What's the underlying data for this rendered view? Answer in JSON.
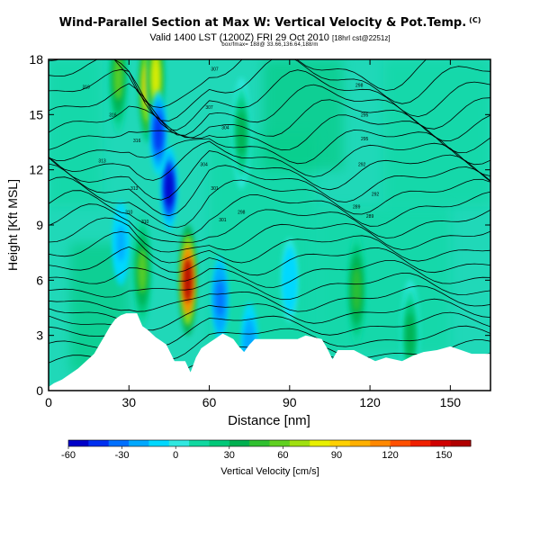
{
  "header": {
    "title": "Wind-Parallel Section at Max W: Vertical Velocity & Pot.Temp.",
    "title_mark": "(C)",
    "valid_main": "Valid 1400 LST (1200Z) FRI 29 Oct 2010",
    "valid_small": "[18hrl cst@2251z]",
    "endpoints": "box/fmax= 188@ 33.66,136.64,188/m"
  },
  "chart_data": {
    "type": "heatmap",
    "title": "Wind-Parallel Section at Max W: Vertical Velocity & Pot.Temp.",
    "xlabel": "Distance [nm]",
    "ylabel": "Height [Kft MSL]",
    "xlim": [
      0,
      165
    ],
    "ylim": [
      0,
      18
    ],
    "xticks": [
      0,
      30,
      60,
      90,
      120,
      150
    ],
    "yticks": [
      0,
      3,
      6,
      9,
      12,
      15,
      18
    ],
    "colorbar": {
      "label": "Vertical Velocity [cm/s]",
      "min": -60,
      "max": 165,
      "tick_values": [
        -60,
        -30,
        0,
        30,
        60,
        90,
        120,
        150
      ],
      "colors": [
        "#0000c8",
        "#0030f0",
        "#0070ff",
        "#00a8ff",
        "#00d8ff",
        "#30e8e0",
        "#10d8a0",
        "#00c878",
        "#00b050",
        "#30c030",
        "#60d020",
        "#a0e010",
        "#e8f000",
        "#ffd000",
        "#ffb000",
        "#ff8800",
        "#ff5000",
        "#f02000",
        "#d00000",
        "#b00000"
      ]
    },
    "terrain": [
      [
        0,
        0.2
      ],
      [
        2,
        0.4
      ],
      [
        5,
        0.6
      ],
      [
        8,
        0.9
      ],
      [
        11,
        1.2
      ],
      [
        14,
        1.6
      ],
      [
        17,
        2.0
      ],
      [
        19,
        2.5
      ],
      [
        21,
        3.0
      ],
      [
        23,
        3.5
      ],
      [
        25,
        3.9
      ],
      [
        27,
        4.1
      ],
      [
        29,
        4.2
      ],
      [
        33,
        4.2
      ],
      [
        35,
        3.5
      ],
      [
        37,
        3.3
      ],
      [
        40,
        2.9
      ],
      [
        42,
        2.7
      ],
      [
        44,
        2.5
      ],
      [
        47,
        1.6
      ],
      [
        51,
        1.6
      ],
      [
        53,
        1.0
      ],
      [
        55,
        1.8
      ],
      [
        57,
        2.3
      ],
      [
        60,
        2.6
      ],
      [
        63,
        2.9
      ],
      [
        65,
        3.1
      ],
      [
        69,
        2.8
      ],
      [
        71,
        2.4
      ],
      [
        73,
        2.1
      ],
      [
        75,
        2.5
      ],
      [
        77,
        2.8
      ],
      [
        83,
        2.8
      ],
      [
        85,
        2.8
      ],
      [
        93,
        2.8
      ],
      [
        96,
        3.0
      ],
      [
        102,
        2.8
      ],
      [
        104,
        2.3
      ],
      [
        106,
        1.7
      ],
      [
        108,
        2.2
      ],
      [
        114,
        2.2
      ],
      [
        118,
        1.9
      ],
      [
        122,
        1.6
      ],
      [
        126,
        1.8
      ],
      [
        132,
        1.6
      ],
      [
        136,
        1.9
      ],
      [
        140,
        2.1
      ],
      [
        145,
        2.2
      ],
      [
        150,
        2.4
      ],
      [
        158,
        2.0
      ],
      [
        165,
        2.0
      ]
    ],
    "updrafts": [
      {
        "x": 52,
        "z": 6.0,
        "w": 163
      },
      {
        "x": 37,
        "z": 16.5,
        "w": 95
      },
      {
        "x": 40,
        "z": 17.0,
        "w": 80
      },
      {
        "x": 35,
        "z": 6.5,
        "w": 55
      },
      {
        "x": 26,
        "z": 17.0,
        "w": 55
      },
      {
        "x": 115,
        "z": 5.5,
        "w": 45
      },
      {
        "x": 135,
        "z": 3.0,
        "w": 30
      },
      {
        "x": 72,
        "z": 14.0,
        "w": 35
      }
    ],
    "downdrafts": [
      {
        "x": 45,
        "z": 11.0,
        "w": -55
      },
      {
        "x": 41,
        "z": 14.0,
        "w": -40
      },
      {
        "x": 64,
        "z": 5.0,
        "w": -35
      },
      {
        "x": 27,
        "z": 8.0,
        "w": -20
      },
      {
        "x": 75,
        "z": 2.5,
        "w": -25
      },
      {
        "x": 90,
        "z": 6.0,
        "w": -15
      }
    ],
    "theta_labels": [
      "319",
      "316",
      "316",
      "313",
      "313",
      "310",
      "310",
      "307",
      "307",
      "304",
      "304",
      "301",
      "301",
      "298",
      "298",
      "295",
      "295",
      "292",
      "292",
      "289",
      "289"
    ]
  }
}
